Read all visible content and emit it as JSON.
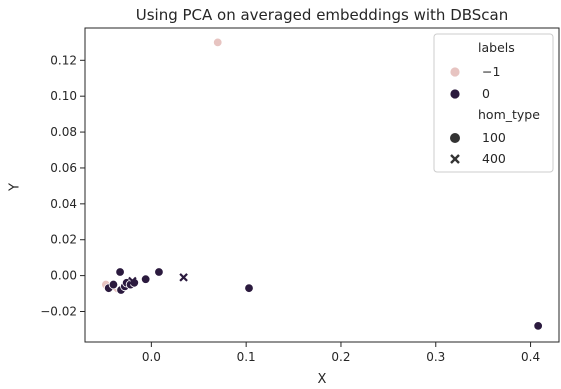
{
  "chart_data": {
    "type": "scatter",
    "title": "Using PCA on averaged embeddings with DBScan",
    "xlabel": "X",
    "ylabel": "Y",
    "xlim": [
      -0.07,
      0.43
    ],
    "ylim": [
      -0.037,
      0.138
    ],
    "x_ticks": [
      0.0,
      0.1,
      0.2,
      0.3,
      0.4
    ],
    "x_tick_labels": [
      "0.0",
      "0.1",
      "0.2",
      "0.3",
      "0.4"
    ],
    "y_ticks": [
      -0.02,
      0.0,
      0.02,
      0.04,
      0.06,
      0.08,
      0.1,
      0.12
    ],
    "y_tick_labels": [
      "−0.02",
      "0.00",
      "0.02",
      "0.04",
      "0.06",
      "0.08",
      "0.10",
      "0.12"
    ],
    "grid": false,
    "legend": {
      "placement": "top-right",
      "hue_title": "labels",
      "hue_entries": [
        {
          "label": "−1",
          "color": "#e7c4c1"
        },
        {
          "label": "0",
          "color": "#2b1a3e"
        }
      ],
      "style_title": "hom_type",
      "style_entries": [
        {
          "label": "100",
          "marker": "circle"
        },
        {
          "label": "400",
          "marker": "x"
        }
      ]
    },
    "series": [
      {
        "name": "−1",
        "color": "#e7c4c1",
        "points": [
          {
            "x": 0.07,
            "y": 0.13,
            "marker": "circle"
          },
          {
            "x": -0.048,
            "y": -0.005,
            "marker": "circle"
          },
          {
            "x": -0.04,
            "y": -0.007,
            "marker": "x"
          }
        ]
      },
      {
        "name": "0",
        "color": "#2b1a3e",
        "points": [
          {
            "x": -0.045,
            "y": -0.007,
            "marker": "circle"
          },
          {
            "x": -0.04,
            "y": -0.005,
            "marker": "circle"
          },
          {
            "x": -0.033,
            "y": 0.002,
            "marker": "circle"
          },
          {
            "x": -0.032,
            "y": -0.008,
            "marker": "circle"
          },
          {
            "x": -0.028,
            "y": -0.006,
            "marker": "circle"
          },
          {
            "x": -0.026,
            "y": -0.004,
            "marker": "circle"
          },
          {
            "x": -0.022,
            "y": -0.005,
            "marker": "circle"
          },
          {
            "x": -0.018,
            "y": -0.004,
            "marker": "circle"
          },
          {
            "x": -0.006,
            "y": -0.002,
            "marker": "circle"
          },
          {
            "x": 0.008,
            "y": 0.002,
            "marker": "circle"
          },
          {
            "x": 0.103,
            "y": -0.007,
            "marker": "circle"
          },
          {
            "x": 0.408,
            "y": -0.028,
            "marker": "circle"
          },
          {
            "x": 0.034,
            "y": -0.001,
            "marker": "x"
          },
          {
            "x": -0.02,
            "y": -0.003,
            "marker": "x"
          }
        ]
      }
    ]
  }
}
